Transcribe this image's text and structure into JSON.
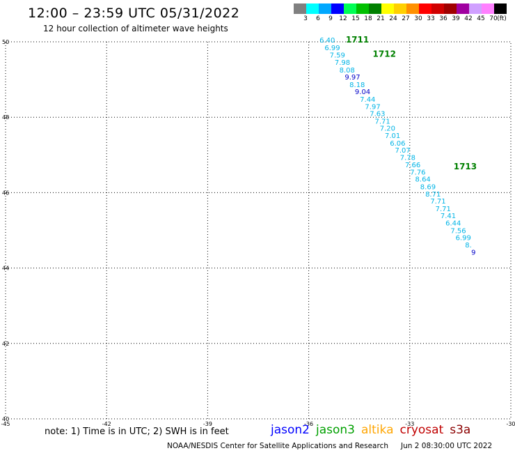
{
  "header": {
    "title": "12:00 – 23:59 UTC 05/31/2022",
    "subtitle": "12 hour collection of altimeter wave heights"
  },
  "legend": {
    "colors": [
      "#808080",
      "#00ffff",
      "#00a8ff",
      "#0000ff",
      "#00ff55",
      "#00c000",
      "#008000",
      "#ffff00",
      "#ffd000",
      "#ff9000",
      "#ff0000",
      "#d00000",
      "#a00000",
      "#a000a0",
      "#d0a0ff",
      "#ff80ff",
      "#000000"
    ],
    "labels": [
      "3",
      "6",
      "9",
      "12",
      "15",
      "18",
      "21",
      "24",
      "27",
      "30",
      "33",
      "36",
      "39",
      "42",
      "45",
      "70",
      "(ft)"
    ]
  },
  "map": {
    "lon_range": [
      -45,
      -30
    ],
    "lat_range": [
      40,
      50
    ],
    "lon_ticks": [
      -45,
      -42,
      -39,
      -36,
      -33,
      -30
    ],
    "lon_tick_labels": [
      "-45",
      "-42",
      "-39",
      "-36",
      "-33",
      "-30"
    ],
    "lat_ticks": [
      40,
      42,
      44,
      46,
      48,
      50
    ],
    "lat_tick_labels": [
      "40",
      "42",
      "44",
      "46",
      "48",
      "50"
    ],
    "grid": "dotted",
    "wave_colors": {
      "cyan": "#00b4e6",
      "blue": "#0000c8",
      "green": "#008000"
    },
    "track_points": [
      {
        "lon": -35.45,
        "lat": 49.98,
        "text": "6.40",
        "color": "cyan"
      },
      {
        "lon": -35.3,
        "lat": 49.78,
        "text": "6.99",
        "color": "cyan"
      },
      {
        "lon": -35.15,
        "lat": 49.58,
        "text": "7.59",
        "color": "cyan"
      },
      {
        "lon": -35.0,
        "lat": 49.39,
        "text": "7.98",
        "color": "cyan"
      },
      {
        "lon": -34.86,
        "lat": 49.19,
        "text": "8.08",
        "color": "cyan"
      },
      {
        "lon": -34.7,
        "lat": 49.0,
        "text": "9.97",
        "color": "blue"
      },
      {
        "lon": -34.56,
        "lat": 48.8,
        "text": "8.18",
        "color": "cyan"
      },
      {
        "lon": -34.4,
        "lat": 48.61,
        "text": "9.04",
        "color": "blue"
      },
      {
        "lon": -34.25,
        "lat": 48.41,
        "text": "7.44",
        "color": "cyan"
      },
      {
        "lon": -34.1,
        "lat": 48.22,
        "text": "7.97",
        "color": "cyan"
      },
      {
        "lon": -33.96,
        "lat": 48.03,
        "text": "7.63",
        "color": "cyan"
      },
      {
        "lon": -33.81,
        "lat": 47.83,
        "text": "7.71",
        "color": "cyan"
      },
      {
        "lon": -33.66,
        "lat": 47.64,
        "text": "7.20",
        "color": "cyan"
      },
      {
        "lon": -33.51,
        "lat": 47.45,
        "text": "7.01",
        "color": "cyan"
      },
      {
        "lon": -33.36,
        "lat": 47.25,
        "text": "6.06",
        "color": "cyan"
      },
      {
        "lon": -33.21,
        "lat": 47.06,
        "text": "7.07",
        "color": "cyan"
      },
      {
        "lon": -33.06,
        "lat": 46.87,
        "text": "7.78",
        "color": "cyan"
      },
      {
        "lon": -32.91,
        "lat": 46.67,
        "text": "7.66",
        "color": "cyan"
      },
      {
        "lon": -32.76,
        "lat": 46.48,
        "text": "7.76",
        "color": "cyan"
      },
      {
        "lon": -32.61,
        "lat": 46.29,
        "text": "8.64",
        "color": "cyan"
      },
      {
        "lon": -32.46,
        "lat": 46.09,
        "text": "8.69",
        "color": "cyan"
      },
      {
        "lon": -32.31,
        "lat": 45.9,
        "text": "8.71",
        "color": "cyan"
      },
      {
        "lon": -32.16,
        "lat": 45.71,
        "text": "7.71",
        "color": "cyan"
      },
      {
        "lon": -32.01,
        "lat": 45.51,
        "text": "7.71",
        "color": "cyan"
      },
      {
        "lon": -31.86,
        "lat": 45.32,
        "text": "7.41",
        "color": "cyan"
      },
      {
        "lon": -31.71,
        "lat": 45.13,
        "text": "6.44",
        "color": "cyan"
      },
      {
        "lon": -31.56,
        "lat": 44.93,
        "text": "7.56",
        "color": "cyan"
      },
      {
        "lon": -31.41,
        "lat": 44.74,
        "text": "6.99",
        "color": "cyan"
      },
      {
        "lon": -31.26,
        "lat": 44.55,
        "text": "8.",
        "color": "cyan"
      },
      {
        "lon": -31.11,
        "lat": 44.35,
        "text": "9",
        "color": "blue"
      }
    ],
    "pass_labels": [
      {
        "lon": -34.9,
        "lat": 49.98,
        "text": "1711"
      },
      {
        "lon": -34.1,
        "lat": 49.6,
        "text": "1712"
      },
      {
        "lon": -31.7,
        "lat": 46.62,
        "text": "1713"
      }
    ]
  },
  "footer": {
    "note": "note: 1) Time is in UTC; 2) SWH is in feet",
    "satellites": [
      {
        "name": "jason2",
        "color": "#0000ff"
      },
      {
        "name": "jason3",
        "color": "#00a000"
      },
      {
        "name": "altika",
        "color": "#ffa500"
      },
      {
        "name": "cryosat",
        "color": "#c00000"
      },
      {
        "name": "s3a",
        "color": "#8b0000"
      }
    ],
    "credit": "NOAA/NESDIS Center for Satellite Applications and Research",
    "timestamp": "Jun  2 08:30:00 UTC 2022"
  }
}
